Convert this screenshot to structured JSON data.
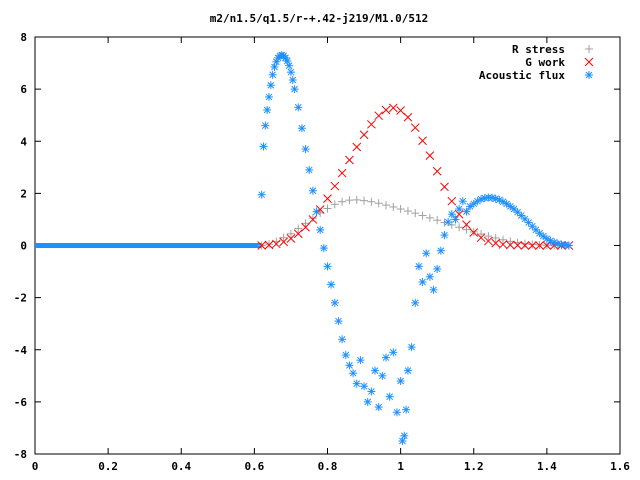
{
  "chart_data": {
    "type": "scatter",
    "title": "m2/n1.5/q1.5/r-+.42-j219/M1.0/512",
    "xlabel": "",
    "ylabel": "",
    "xlim": [
      0,
      1.6
    ],
    "ylim": [
      -8,
      8
    ],
    "x_ticks": [
      "0",
      "0.2",
      "0.4",
      "0.6",
      "0.8",
      "1",
      "1.2",
      "1.4",
      "1.6"
    ],
    "y_ticks": [
      "-8",
      "-6",
      "-4",
      "-2",
      "0",
      "2",
      "4",
      "6",
      "8"
    ],
    "grid": false,
    "legend_position": "top-right",
    "series": [
      {
        "name": "R stress",
        "marker": "+",
        "color": "#a0a0a0",
        "points": [
          [
            0.62,
            0.0
          ],
          [
            0.64,
            0.05
          ],
          [
            0.66,
            0.15
          ],
          [
            0.68,
            0.3
          ],
          [
            0.7,
            0.45
          ],
          [
            0.72,
            0.65
          ],
          [
            0.74,
            0.85
          ],
          [
            0.76,
            1.05
          ],
          [
            0.78,
            1.25
          ],
          [
            0.8,
            1.42
          ],
          [
            0.82,
            1.58
          ],
          [
            0.84,
            1.68
          ],
          [
            0.86,
            1.74
          ],
          [
            0.88,
            1.75
          ],
          [
            0.9,
            1.72
          ],
          [
            0.92,
            1.68
          ],
          [
            0.94,
            1.62
          ],
          [
            0.96,
            1.55
          ],
          [
            0.98,
            1.48
          ],
          [
            1.0,
            1.4
          ],
          [
            1.02,
            1.32
          ],
          [
            1.04,
            1.24
          ],
          [
            1.06,
            1.15
          ],
          [
            1.08,
            1.06
          ],
          [
            1.1,
            0.97
          ],
          [
            1.12,
            0.88
          ],
          [
            1.14,
            0.79
          ],
          [
            1.16,
            0.7
          ],
          [
            1.18,
            0.61
          ],
          [
            1.2,
            0.52
          ],
          [
            1.22,
            0.44
          ],
          [
            1.24,
            0.36
          ],
          [
            1.26,
            0.29
          ],
          [
            1.28,
            0.22
          ],
          [
            1.3,
            0.16
          ],
          [
            1.32,
            0.11
          ],
          [
            1.34,
            0.07
          ],
          [
            1.36,
            0.04
          ],
          [
            1.38,
            0.02
          ],
          [
            1.4,
            0.01
          ],
          [
            1.42,
            0.0
          ],
          [
            1.44,
            0.0
          ],
          [
            1.46,
            0.0
          ]
        ]
      },
      {
        "name": "G work",
        "marker": "x",
        "color": "#ff0000",
        "points": [
          [
            0.62,
            0.0
          ],
          [
            0.64,
            0.02
          ],
          [
            0.66,
            0.06
          ],
          [
            0.68,
            0.14
          ],
          [
            0.7,
            0.27
          ],
          [
            0.72,
            0.45
          ],
          [
            0.74,
            0.7
          ],
          [
            0.76,
            1.0
          ],
          [
            0.78,
            1.38
          ],
          [
            0.8,
            1.8
          ],
          [
            0.82,
            2.28
          ],
          [
            0.84,
            2.78
          ],
          [
            0.86,
            3.28
          ],
          [
            0.88,
            3.78
          ],
          [
            0.9,
            4.25
          ],
          [
            0.92,
            4.65
          ],
          [
            0.94,
            4.98
          ],
          [
            0.96,
            5.2
          ],
          [
            0.98,
            5.28
          ],
          [
            1.0,
            5.18
          ],
          [
            1.02,
            4.92
          ],
          [
            1.04,
            4.52
          ],
          [
            1.06,
            4.02
          ],
          [
            1.08,
            3.45
          ],
          [
            1.1,
            2.85
          ],
          [
            1.12,
            2.25
          ],
          [
            1.14,
            1.7
          ],
          [
            1.16,
            1.2
          ],
          [
            1.18,
            0.8
          ],
          [
            1.2,
            0.5
          ],
          [
            1.22,
            0.3
          ],
          [
            1.24,
            0.17
          ],
          [
            1.26,
            0.09
          ],
          [
            1.28,
            0.04
          ],
          [
            1.3,
            0.02
          ],
          [
            1.32,
            0.01
          ],
          [
            1.34,
            0.0
          ],
          [
            1.36,
            0.0
          ],
          [
            1.38,
            0.0
          ],
          [
            1.4,
            0.0
          ],
          [
            1.42,
            0.0
          ],
          [
            1.44,
            0.0
          ],
          [
            1.46,
            0.0
          ]
        ]
      },
      {
        "name": "Acoustic flux",
        "marker": "*",
        "color": "#1e90ff",
        "points": [
          [
            0.62,
            1.95
          ],
          [
            0.625,
            3.8
          ],
          [
            0.63,
            4.6
          ],
          [
            0.635,
            5.2
          ],
          [
            0.64,
            5.7
          ],
          [
            0.645,
            6.15
          ],
          [
            0.65,
            6.55
          ],
          [
            0.655,
            6.85
          ],
          [
            0.66,
            7.05
          ],
          [
            0.665,
            7.2
          ],
          [
            0.67,
            7.28
          ],
          [
            0.675,
            7.3
          ],
          [
            0.68,
            7.28
          ],
          [
            0.685,
            7.2
          ],
          [
            0.69,
            7.08
          ],
          [
            0.695,
            6.9
          ],
          [
            0.7,
            6.65
          ],
          [
            0.705,
            6.35
          ],
          [
            0.71,
            6.0
          ],
          [
            0.72,
            5.3
          ],
          [
            0.73,
            4.5
          ],
          [
            0.74,
            3.7
          ],
          [
            0.75,
            2.9
          ],
          [
            0.76,
            2.1
          ],
          [
            0.77,
            1.3
          ],
          [
            0.78,
            0.6
          ],
          [
            0.79,
            -0.1
          ],
          [
            0.8,
            -0.8
          ],
          [
            0.81,
            -1.5
          ],
          [
            0.82,
            -2.2
          ],
          [
            0.83,
            -2.9
          ],
          [
            0.84,
            -3.6
          ],
          [
            0.85,
            -4.2
          ],
          [
            0.86,
            -4.6
          ],
          [
            0.87,
            -4.9
          ],
          [
            0.88,
            -5.3
          ],
          [
            0.89,
            -4.4
          ],
          [
            0.9,
            -5.4
          ],
          [
            0.91,
            -6.0
          ],
          [
            0.92,
            -5.6
          ],
          [
            0.93,
            -4.8
          ],
          [
            0.94,
            -6.2
          ],
          [
            0.95,
            -5.0
          ],
          [
            0.96,
            -4.3
          ],
          [
            0.97,
            -5.8
          ],
          [
            0.98,
            -4.1
          ],
          [
            0.99,
            -6.4
          ],
          [
            1.0,
            -5.2
          ],
          [
            1.005,
            -7.5
          ],
          [
            1.01,
            -7.3
          ],
          [
            1.015,
            -6.3
          ],
          [
            1.02,
            -4.8
          ],
          [
            1.03,
            -3.9
          ],
          [
            1.04,
            -2.2
          ],
          [
            1.05,
            -0.8
          ],
          [
            1.06,
            -1.4
          ],
          [
            1.07,
            -0.3
          ],
          [
            1.08,
            -1.2
          ],
          [
            1.09,
            -1.7
          ],
          [
            1.1,
            -0.9
          ],
          [
            1.11,
            -0.2
          ],
          [
            1.12,
            0.4
          ],
          [
            1.13,
            0.9
          ],
          [
            1.14,
            1.2
          ],
          [
            1.15,
            1.0
          ],
          [
            1.16,
            1.4
          ],
          [
            1.17,
            1.7
          ],
          [
            1.18,
            1.3
          ],
          [
            1.19,
            1.5
          ],
          [
            1.2,
            1.6
          ],
          [
            1.21,
            1.7
          ],
          [
            1.22,
            1.78
          ],
          [
            1.23,
            1.82
          ],
          [
            1.24,
            1.84
          ],
          [
            1.25,
            1.83
          ],
          [
            1.26,
            1.8
          ],
          [
            1.27,
            1.75
          ],
          [
            1.28,
            1.68
          ],
          [
            1.29,
            1.6
          ],
          [
            1.3,
            1.5
          ],
          [
            1.31,
            1.4
          ],
          [
            1.32,
            1.28
          ],
          [
            1.33,
            1.15
          ],
          [
            1.34,
            1.02
          ],
          [
            1.35,
            0.88
          ],
          [
            1.36,
            0.74
          ],
          [
            1.37,
            0.6
          ],
          [
            1.38,
            0.47
          ],
          [
            1.39,
            0.36
          ],
          [
            1.4,
            0.26
          ],
          [
            1.41,
            0.18
          ],
          [
            1.42,
            0.12
          ],
          [
            1.43,
            0.07
          ],
          [
            1.44,
            0.04
          ],
          [
            1.45,
            0.02
          ],
          [
            1.46,
            0.0
          ]
        ]
      }
    ]
  }
}
